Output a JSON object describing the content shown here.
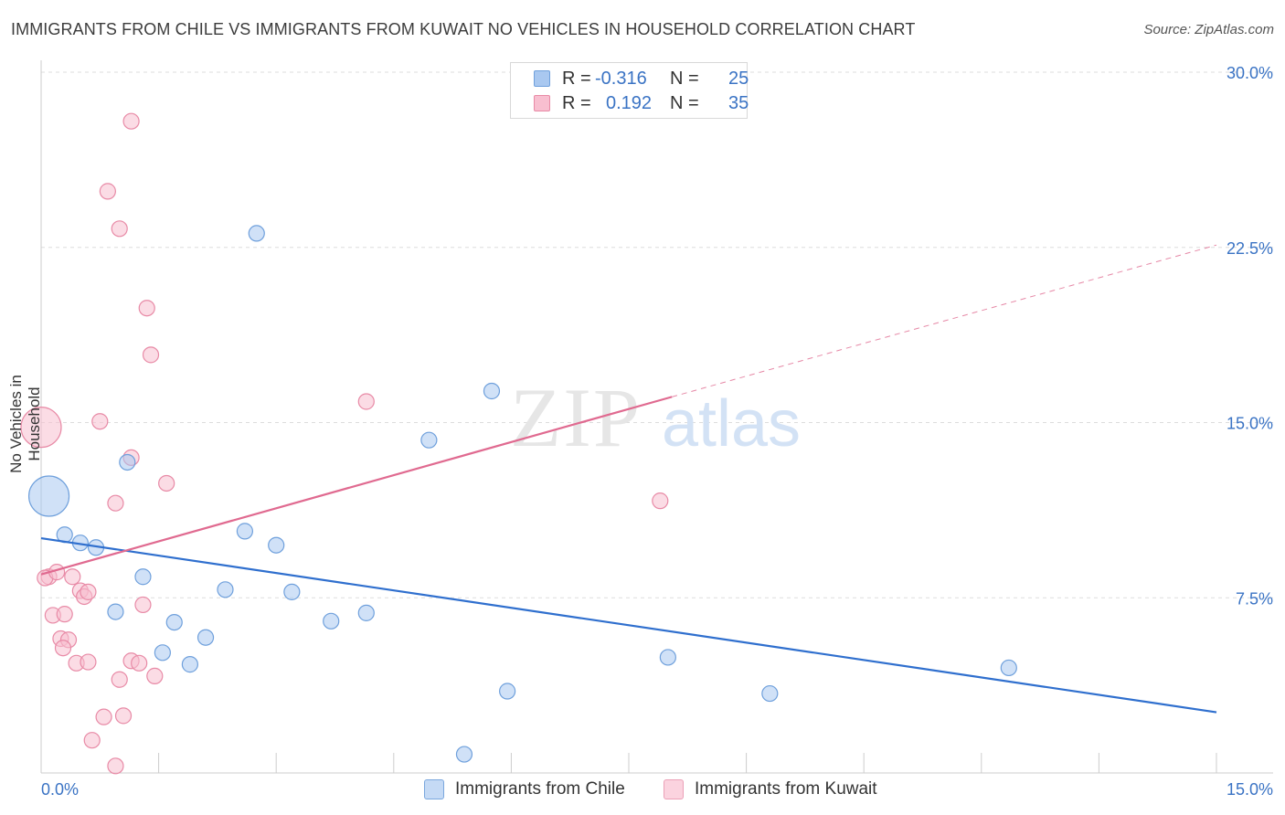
{
  "header": {
    "title": "IMMIGRANTS FROM CHILE VS IMMIGRANTS FROM KUWAIT NO VEHICLES IN HOUSEHOLD CORRELATION CHART",
    "source": "Source: ZipAtlas.com"
  },
  "watermark": {
    "zip": "ZIP",
    "atlas": "atlas"
  },
  "legend": {
    "r_label": "R =",
    "n_label": "N =",
    "rows": [
      {
        "series": "Immigrants from Chile",
        "r": "-0.316",
        "n": "25",
        "color": "#a9c8f0",
        "border": "#6fa0dc"
      },
      {
        "series": "Immigrants from Kuwait",
        "r": "0.192",
        "n": "35",
        "color": "#f8bfd0",
        "border": "#e88aa6"
      }
    ]
  },
  "colors": {
    "chile_fill": "#a9c8f0",
    "chile_line": "#2f6fce",
    "kuwait_fill": "#f8bfd0",
    "kuwait_line": "#e06a90",
    "tick_label": "#3a73c4",
    "grid": "#dddddd"
  },
  "chart_data": {
    "type": "scatter",
    "title": "IMMIGRANTS FROM CHILE VS IMMIGRANTS FROM KUWAIT NO VEHICLES IN HOUSEHOLD CORRELATION CHART",
    "xlabel": "",
    "ylabel": "No Vehicles in Household",
    "xlim": [
      0,
      15
    ],
    "ylim": [
      0,
      30
    ],
    "x_tick_labels": [
      {
        "value": 0,
        "label": "0.0%"
      },
      {
        "value": 15,
        "label": "15.0%"
      }
    ],
    "y_tick_labels": [
      {
        "value": 7.5,
        "label": "7.5%"
      },
      {
        "value": 15,
        "label": "15.0%"
      },
      {
        "value": 22.5,
        "label": "22.5%"
      },
      {
        "value": 30,
        "label": "30.0%"
      }
    ],
    "grid": true,
    "series": [
      {
        "name": "Immigrants from Chile",
        "r": -0.316,
        "n": 25,
        "trend": {
          "x": [
            0,
            15
          ],
          "y": [
            10.05,
            2.6
          ],
          "dashed_extension": false
        },
        "points": [
          {
            "x": 0.1,
            "y": 11.85,
            "size": "large"
          },
          {
            "x": 0.3,
            "y": 10.2
          },
          {
            "x": 0.5,
            "y": 9.85
          },
          {
            "x": 0.7,
            "y": 9.65
          },
          {
            "x": 1.1,
            "y": 13.3
          },
          {
            "x": 2.75,
            "y": 23.1
          },
          {
            "x": 1.3,
            "y": 8.4
          },
          {
            "x": 2.35,
            "y": 7.85
          },
          {
            "x": 2.6,
            "y": 10.35
          },
          {
            "x": 3.0,
            "y": 9.75
          },
          {
            "x": 3.2,
            "y": 7.75
          },
          {
            "x": 0.95,
            "y": 6.9
          },
          {
            "x": 1.7,
            "y": 6.45
          },
          {
            "x": 2.1,
            "y": 5.8
          },
          {
            "x": 1.55,
            "y": 5.15
          },
          {
            "x": 1.9,
            "y": 4.65
          },
          {
            "x": 3.7,
            "y": 6.5
          },
          {
            "x": 4.15,
            "y": 6.85
          },
          {
            "x": 4.95,
            "y": 14.25
          },
          {
            "x": 5.75,
            "y": 16.35
          },
          {
            "x": 5.95,
            "y": 3.5
          },
          {
            "x": 5.4,
            "y": 0.8
          },
          {
            "x": 8.0,
            "y": 4.95
          },
          {
            "x": 9.3,
            "y": 3.4
          },
          {
            "x": 12.35,
            "y": 4.5
          }
        ]
      },
      {
        "name": "Immigrants from Kuwait",
        "r": 0.192,
        "n": 35,
        "trend": {
          "x": [
            0,
            8.05
          ],
          "y": [
            8.5,
            16.1
          ],
          "dashed_extension": true,
          "extension_to": {
            "x": 15,
            "y": 22.6
          }
        },
        "points": [
          {
            "x": 0.0,
            "y": 14.8,
            "size": "large"
          },
          {
            "x": 0.1,
            "y": 8.4
          },
          {
            "x": 0.05,
            "y": 8.35
          },
          {
            "x": 0.2,
            "y": 8.6
          },
          {
            "x": 0.4,
            "y": 8.4
          },
          {
            "x": 0.5,
            "y": 7.8
          },
          {
            "x": 0.55,
            "y": 7.55
          },
          {
            "x": 0.6,
            "y": 7.75
          },
          {
            "x": 0.15,
            "y": 6.75
          },
          {
            "x": 0.3,
            "y": 6.8
          },
          {
            "x": 0.25,
            "y": 5.75
          },
          {
            "x": 0.35,
            "y": 5.7
          },
          {
            "x": 0.28,
            "y": 5.35
          },
          {
            "x": 0.45,
            "y": 4.7
          },
          {
            "x": 0.6,
            "y": 4.75
          },
          {
            "x": 1.15,
            "y": 27.9
          },
          {
            "x": 0.85,
            "y": 24.9
          },
          {
            "x": 1.0,
            "y": 23.3
          },
          {
            "x": 1.35,
            "y": 19.9
          },
          {
            "x": 1.4,
            "y": 17.9
          },
          {
            "x": 0.75,
            "y": 15.05
          },
          {
            "x": 1.15,
            "y": 13.5
          },
          {
            "x": 1.6,
            "y": 12.4
          },
          {
            "x": 0.95,
            "y": 11.55
          },
          {
            "x": 1.3,
            "y": 7.2
          },
          {
            "x": 1.15,
            "y": 4.8
          },
          {
            "x": 1.25,
            "y": 4.7
          },
          {
            "x": 1.0,
            "y": 4.0
          },
          {
            "x": 1.45,
            "y": 4.15
          },
          {
            "x": 0.8,
            "y": 2.4
          },
          {
            "x": 1.05,
            "y": 2.45
          },
          {
            "x": 0.65,
            "y": 1.4
          },
          {
            "x": 0.95,
            "y": 0.3
          },
          {
            "x": 4.15,
            "y": 15.9
          },
          {
            "x": 7.9,
            "y": 11.65
          }
        ]
      }
    ]
  }
}
